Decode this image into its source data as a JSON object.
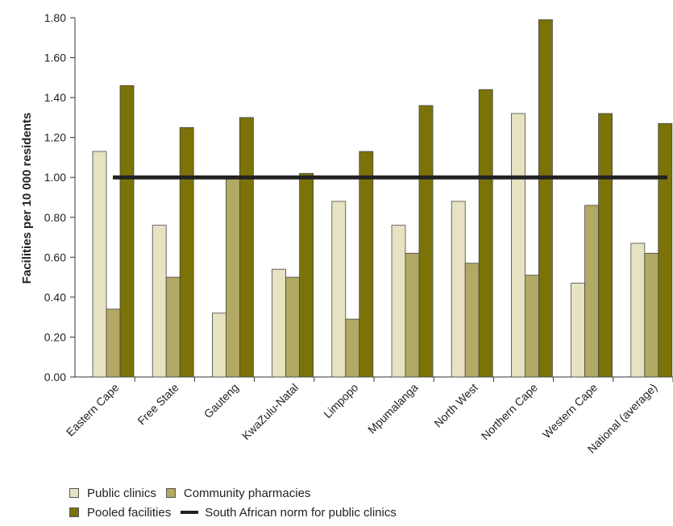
{
  "chart_data": {
    "type": "bar",
    "ylabel": "Facilities per 10 000 residents",
    "xlabel": "",
    "ylim": [
      0,
      1.8
    ],
    "yticks": [
      "0.00",
      "0.20",
      "0.40",
      "0.60",
      "0.80",
      "1.00",
      "1.20",
      "1.40",
      "1.60",
      "1.80"
    ],
    "categories": [
      "Eastern Cape",
      "Free State",
      "Gauteng",
      "KwaZulu-Natal",
      "Limpopo",
      "Mpumalanga",
      "North West",
      "Northern Cape",
      "Western Cape",
      "National (average)"
    ],
    "series": [
      {
        "name": "Public clinics",
        "color": "#e6e2c2",
        "values": [
          1.13,
          0.76,
          0.32,
          0.54,
          0.88,
          0.76,
          0.88,
          1.32,
          0.47,
          0.67
        ]
      },
      {
        "name": "Community pharmacies",
        "color": "#b2aa64",
        "values": [
          0.34,
          0.5,
          1.0,
          0.5,
          0.29,
          0.62,
          0.57,
          0.51,
          0.86,
          0.62
        ]
      },
      {
        "name": "Pooled facilities",
        "color": "#7b7308",
        "values": [
          1.46,
          1.25,
          1.3,
          1.02,
          1.13,
          1.36,
          1.44,
          1.79,
          1.32,
          1.27
        ]
      }
    ],
    "reference_line": {
      "name": "South African norm for public clinics",
      "value": 1.0,
      "color": "#222222"
    },
    "grid": false,
    "legend_position": "bottom-left"
  }
}
